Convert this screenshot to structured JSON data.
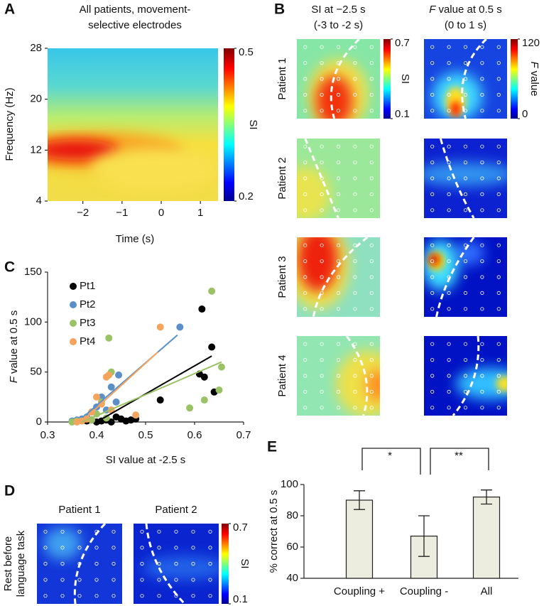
{
  "chart_data": [
    {
      "panel": "A",
      "type": "heatmap",
      "title_lines": [
        "All patients, movement-",
        "selective electrodes"
      ],
      "xlabel": "Time (s)",
      "ylabel": "Frequency (Hz)",
      "xlim": [
        -2.9,
        1.45
      ],
      "xticks": [
        {
          "value": -2,
          "label": "−2"
        },
        {
          "value": -1,
          "label": "−1"
        },
        0,
        1
      ],
      "ylim": [
        4,
        28
      ],
      "yticks": [
        4,
        12,
        20,
        28
      ],
      "colorbar": {
        "label": "SI",
        "lim": [
          0.2,
          0.5
        ],
        "ticks": [
          0.2,
          0.5
        ]
      }
    },
    {
      "panel": "B",
      "type": "maps",
      "columns": [
        {
          "title_lines": [
            "SI at −2.5 s",
            "(-3 to -2 s)"
          ],
          "colorbar": {
            "label": "SI",
            "lim": [
              0.1,
              0.7
            ],
            "ticks": [
              0.1,
              0.7
            ]
          }
        },
        {
          "title_var": "F",
          "title_lines": [
            "value at 0.5 s",
            "(0 to 1 s)"
          ],
          "colorbar": {
            "label_var": "F",
            "label": "value",
            "lim": [
              0,
              120
            ],
            "ticks": [
              0,
              120
            ]
          }
        }
      ],
      "rows": [
        "Patient 1",
        "Patient 2",
        "Patient 3",
        "Patient 4"
      ]
    },
    {
      "panel": "C",
      "type": "scatter",
      "xlabel": "SI value at -2.5 s",
      "ylabel_var": "F",
      "ylabel": "value at 0.5 s",
      "xlim": [
        0.3,
        0.7
      ],
      "xticks": [
        0.3,
        0.4,
        0.5,
        0.6,
        0.7
      ],
      "ylim": [
        0,
        150
      ],
      "yticks": [
        0,
        50,
        100,
        150
      ],
      "legend": "upper left",
      "series": [
        {
          "name": "Pt1",
          "color": "#000000",
          "x": [
            0.615,
            0.635,
            0.61,
            0.62,
            0.64,
            0.53,
            0.48,
            0.47,
            0.45,
            0.44,
            0.42,
            0.41,
            0.4,
            0.43,
            0.46,
            0.39,
            0.38
          ],
          "values": [
            113,
            75,
            48,
            45,
            30,
            22,
            3,
            2,
            3,
            5,
            2,
            1,
            0,
            0,
            1,
            2,
            1
          ],
          "fit_x": [
            0.4,
            0.635
          ],
          "fit_y": [
            0,
            66
          ]
        },
        {
          "name": "Pt2",
          "color": "#5b8fc8",
          "x": [
            0.57,
            0.445,
            0.43,
            0.41,
            0.4,
            0.39,
            0.38,
            0.42,
            0.37,
            0.36,
            0.44,
            0.35
          ],
          "values": [
            95,
            47,
            35,
            25,
            15,
            10,
            5,
            12,
            3,
            2,
            20,
            1
          ],
          "fit_x": [
            0.38,
            0.565
          ],
          "fit_y": [
            8,
            87
          ]
        },
        {
          "name": "Pt3",
          "color": "#9bc265",
          "x": [
            0.635,
            0.425,
            0.655,
            0.65,
            0.62,
            0.59,
            0.43,
            0.41,
            0.4,
            0.38,
            0.36,
            0.35,
            0.42,
            0.39
          ],
          "values": [
            131,
            84,
            55,
            32,
            22,
            14,
            50,
            20,
            8,
            3,
            1,
            0,
            4,
            2
          ],
          "fit_x": [
            0.37,
            0.655
          ],
          "fit_y": [
            0,
            60
          ]
        },
        {
          "name": "Pt4",
          "color": "#f5a45e",
          "x": [
            0.53,
            0.425,
            0.42,
            0.4,
            0.41,
            0.39,
            0.48,
            0.38,
            0.37,
            0.36,
            0.43
          ],
          "values": [
            95,
            47,
            45,
            25,
            18,
            10,
            7,
            3,
            1,
            0,
            12
          ],
          "fit_x": [
            0.38,
            0.525
          ],
          "fit_y": [
            5,
            70
          ]
        }
      ]
    },
    {
      "panel": "D",
      "type": "maps",
      "row_label_lines": [
        "Rest before",
        "language task"
      ],
      "columns": [
        "Patient 1",
        "Patient 2"
      ],
      "colorbar": {
        "label": "SI",
        "lim": [
          0.1,
          0.7
        ],
        "ticks": [
          0.1,
          0.7
        ]
      }
    },
    {
      "panel": "E",
      "type": "bar",
      "ylabel": "% correct at 0.5 s",
      "categories": [
        "Coupling +",
        "Coupling -",
        "All"
      ],
      "values": [
        90,
        67,
        92
      ],
      "errors": [
        6,
        13,
        4.5
      ],
      "color": "#ededdf",
      "ylim": [
        40,
        100
      ],
      "yticks": [
        40,
        60,
        80,
        100
      ],
      "significance": [
        "*",
        "**"
      ]
    }
  ]
}
